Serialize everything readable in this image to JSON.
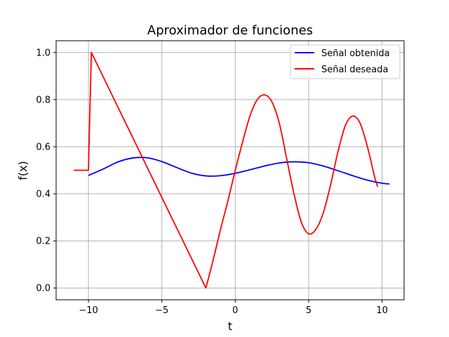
{
  "chart_data": {
    "type": "line",
    "title": "Aproximador de funciones",
    "xlabel": "t",
    "ylabel": "f(x)",
    "xlim": [
      -12.2,
      11.5
    ],
    "ylim": [
      -0.05,
      1.05
    ],
    "xticks": [
      -10,
      -5,
      0,
      5,
      10
    ],
    "yticks": [
      0.0,
      0.2,
      0.4,
      0.6,
      0.8,
      1.0
    ],
    "xtick_labels": [
      "−10",
      "−5",
      "0",
      "5",
      "10"
    ],
    "ytick_labels": [
      "0.0",
      "0.2",
      "0.4",
      "0.6",
      "0.8",
      "1.0"
    ],
    "grid": true,
    "legend_position": "top-right",
    "series": [
      {
        "name": "Señal obtenida",
        "color": "#0000ff",
        "x": [
          -10,
          -9,
          -8,
          -7,
          -6,
          -5,
          -4,
          -3,
          -2,
          -1,
          0,
          1,
          2,
          3,
          4,
          5,
          6,
          7,
          8,
          9,
          10,
          10.5
        ],
        "y": [
          0.478,
          0.505,
          0.535,
          0.552,
          0.553,
          0.537,
          0.512,
          0.488,
          0.476,
          0.477,
          0.487,
          0.502,
          0.518,
          0.531,
          0.536,
          0.532,
          0.518,
          0.498,
          0.477,
          0.458,
          0.445,
          0.442
        ]
      },
      {
        "name": "Señal deseada",
        "color": "#ff0000",
        "x": [
          -11,
          -10,
          -9.8,
          -2,
          -1.5,
          -1,
          -0.5,
          0,
          0.5,
          1,
          1.5,
          2,
          2.5,
          3,
          3.5,
          4,
          4.5,
          5,
          5.5,
          6,
          6.5,
          7,
          7.5,
          8,
          8.5,
          9,
          9.5,
          9.7
        ],
        "y": [
          0.5,
          0.5,
          1.0,
          0.0,
          0.12,
          0.25,
          0.37,
          0.5,
          0.62,
          0.73,
          0.8,
          0.82,
          0.79,
          0.7,
          0.55,
          0.4,
          0.28,
          0.23,
          0.25,
          0.32,
          0.44,
          0.58,
          0.69,
          0.73,
          0.7,
          0.6,
          0.47,
          0.43
        ]
      }
    ]
  }
}
